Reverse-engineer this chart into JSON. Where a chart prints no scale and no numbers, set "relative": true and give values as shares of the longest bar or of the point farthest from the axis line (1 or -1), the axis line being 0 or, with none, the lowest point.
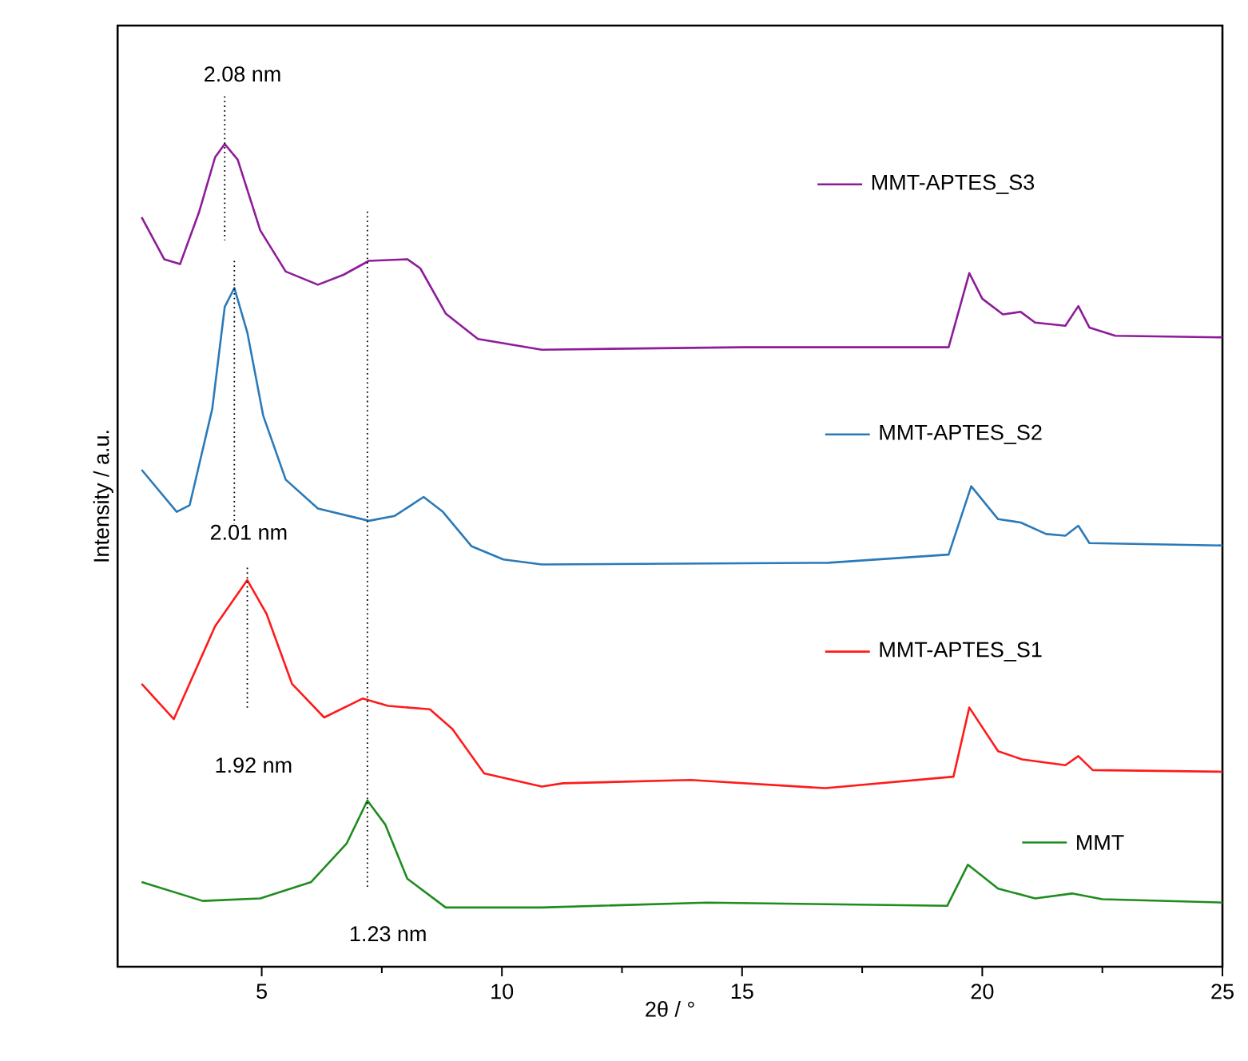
{
  "chart_data": {
    "type": "line",
    "relative": true,
    "xlabel": "2θ / °",
    "ylabel": "Intensity / a.u.",
    "xlim": [
      2,
      25
    ],
    "xticks": [
      5,
      10,
      15,
      20,
      25
    ],
    "grid": false,
    "legend": "right",
    "line_style": "solid",
    "marker": "none",
    "series": [
      {
        "name": "MMT",
        "color": "#1e8c1e",
        "x": [
          2.5,
          3.77,
          4.97,
          6.03,
          6.77,
          7.2,
          7.57,
          8.03,
          8.83,
          10.83,
          14.27,
          19.27,
          19.7,
          20.33,
          21.1,
          21.87,
          22.5,
          25
        ],
        "values": [
          0.103,
          0.08,
          0.083,
          0.103,
          0.15,
          0.202,
          0.173,
          0.107,
          0.072,
          0.072,
          0.078,
          0.074,
          0.124,
          0.095,
          0.083,
          0.089,
          0.082,
          0.078
        ]
      },
      {
        "name": "MMT-APTES_S1",
        "color": "#ff1a1a",
        "x": [
          2.5,
          3.17,
          4.03,
          4.7,
          5.1,
          5.63,
          6.3,
          7.1,
          7.63,
          8.5,
          8.97,
          9.63,
          10.83,
          11.27,
          13.93,
          16.73,
          19.4,
          19.73,
          20.33,
          20.83,
          21.73,
          22.0,
          22.3,
          25
        ],
        "values": [
          0.344,
          0.301,
          0.414,
          0.47,
          0.429,
          0.344,
          0.303,
          0.326,
          0.317,
          0.313,
          0.289,
          0.235,
          0.219,
          0.223,
          0.227,
          0.217,
          0.231,
          0.315,
          0.262,
          0.252,
          0.245,
          0.256,
          0.239,
          0.237
        ]
      },
      {
        "name": "MMT-APTES_S2",
        "color": "#2a7ab9",
        "x": [
          2.5,
          3.23,
          3.5,
          3.97,
          4.23,
          4.43,
          4.7,
          5.03,
          5.5,
          6.17,
          7.23,
          7.77,
          8.37,
          8.77,
          9.37,
          10.03,
          10.83,
          16.8,
          19.3,
          19.77,
          20.33,
          20.8,
          21.33,
          21.73,
          22.0,
          22.23,
          25
        ],
        "values": [
          0.604,
          0.553,
          0.561,
          0.678,
          0.802,
          0.825,
          0.771,
          0.67,
          0.592,
          0.557,
          0.542,
          0.548,
          0.571,
          0.553,
          0.511,
          0.495,
          0.489,
          0.491,
          0.501,
          0.584,
          0.544,
          0.54,
          0.526,
          0.524,
          0.536,
          0.515,
          0.512
        ]
      },
      {
        "name": "MMT-APTES_S3",
        "color": "#8e1b99",
        "x": [
          2.5,
          2.97,
          3.3,
          3.7,
          4.03,
          4.23,
          4.5,
          4.97,
          5.5,
          6.17,
          6.7,
          7.23,
          8.03,
          8.3,
          8.83,
          9.5,
          10.83,
          15,
          19.3,
          19.73,
          20.0,
          20.43,
          20.8,
          21.1,
          21.73,
          22.0,
          22.23,
          22.77,
          25
        ],
        "values": [
          0.911,
          0.86,
          0.854,
          0.918,
          0.984,
          1.0,
          0.981,
          0.895,
          0.845,
          0.829,
          0.841,
          0.858,
          0.86,
          0.849,
          0.794,
          0.763,
          0.75,
          0.753,
          0.753,
          0.843,
          0.812,
          0.793,
          0.796,
          0.783,
          0.779,
          0.803,
          0.777,
          0.767,
          0.765
        ]
      }
    ],
    "ref_lines": [
      {
        "axis": "x",
        "value": 4.23,
        "label": "2.08 nm",
        "line_style": "dotted",
        "color": "#000000"
      },
      {
        "axis": "x",
        "value": 4.43,
        "label": "2.01 nm",
        "line_style": "dotted",
        "color": "#000000"
      },
      {
        "axis": "x",
        "value": 4.7,
        "label": "1.92 nm",
        "line_style": "dotted",
        "color": "#000000"
      },
      {
        "axis": "x",
        "value": 7.2,
        "label": "1.23 nm",
        "line_style": "dotted",
        "color": "#000000"
      }
    ]
  }
}
